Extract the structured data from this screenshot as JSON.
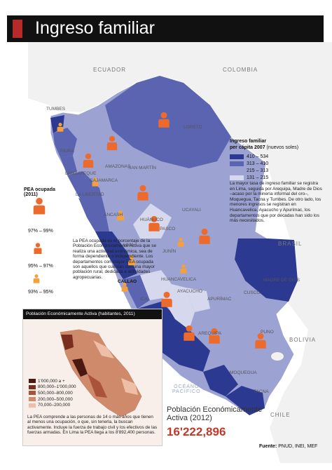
{
  "title": "Ingreso familiar",
  "countries": {
    "ecuador": "ECUADOR",
    "colombia": "COLOMBIA",
    "brasil": "BRASIL",
    "bolivia": "BOLIVIA",
    "chile": "CHILE"
  },
  "ocean": {
    "line1": "OCÉANO",
    "line2": "PACÍFICO"
  },
  "regions": {
    "tumbes": "TUMBES",
    "loreto": "LORETO",
    "amazonas": "AMAZONAS",
    "piura": "PIURA",
    "lambayeque": "LAMBAYEQUE",
    "cajamarca": "CAJAMARCA",
    "san_martin": "SAN MARTÍN",
    "la_libertad": "LA LIBERTAD",
    "ancash": "ÁNCASH",
    "huanuco": "HUÁNUCO",
    "ucayali": "UCAYALI",
    "pasco": "PASCO",
    "lima": "LIMA",
    "junin": "JUNÍN",
    "callao": "CALLAO",
    "madre_de_dios": "MADRE DE DIOS",
    "huancavelica": "HUANCAVELICA",
    "ica": "ICA",
    "ayacucho": "AYACUCHO",
    "apurimac": "APURÍMAC",
    "cusco": "CUSCO",
    "puno": "PUNO",
    "arequipa": "AREQUIPA",
    "moquegua": "MOQUEGUA",
    "tacna": "TACNA"
  },
  "income_legend": {
    "title": "Ingreso familiar",
    "subtitle_bold": "per cápita 2007",
    "subtitle_rest": "(nuevos soles)",
    "items": [
      {
        "label": "410 – 534",
        "color": "#2b3990"
      },
      {
        "label": "313 – 410",
        "color": "#5a64b0"
      },
      {
        "label": "215 – 313",
        "color": "#9ca3d3"
      },
      {
        "label": "131 – 215",
        "color": "#d6d9ee"
      }
    ],
    "note": "La mayor tasa de ingreso familiar se registra en Lima, seguida por Arequipa, Madre de Dios –acaso por la minería informal del oro–, Moquegua, Tacna y Tumbes. De otro lado, los menores ingresos se registran en Huancavelica, Ayacucho y Apurímac, los departamentos que por décadas han sido los más necesitados."
  },
  "pea_legend": {
    "title": "PEA ocupada (2011)",
    "items": [
      {
        "label": "97% – 99%"
      },
      {
        "label": "95% – 97%"
      },
      {
        "label": "93% – 95%"
      }
    ],
    "note": "La PEA ocupada es el porcentaje de la Población Económicamente Activa que se realiza una actividad económica, sea de forma dependiente o independiente. Los departamentos con mayor PEA ocupada son aquellos que cuentan con una mayor población rural, dedicada a actividades agropecuarias."
  },
  "inset": {
    "title": "Población Económicamente Activa (habitantes, 2011)",
    "legend": [
      {
        "label": "1'000,000 a +",
        "color": "#4a1a12"
      },
      {
        "label": "800,000–1'000,000",
        "color": "#7a2e20"
      },
      {
        "label": "500,000–800,000",
        "color": "#a9533b"
      },
      {
        "label": "200,000–500,000",
        "color": "#cf8a6c"
      },
      {
        "label": "70,000–200,000",
        "color": "#eebfa6"
      }
    ],
    "note": "La PEA comprende a las personas de 14 o más años que tienen al menos una ocupación, o que, sin tenerla, la buscan activamente. Incluye la fuerza de trabajo civil y los efectivos de las fuerzas armadas. En Lima la PEA llega a los 8'892,400 personas."
  },
  "population": {
    "title": "Población Económicamente Activa (2012)",
    "value": "16'222,896"
  },
  "source": {
    "label": "Fuente:",
    "text": "PNUD, INEI, MEF"
  },
  "colors": {
    "title_bar": "#111111",
    "accent": "#b72a2a",
    "person_orange": "#ec6b2c",
    "person_light": "#f5a13a"
  }
}
